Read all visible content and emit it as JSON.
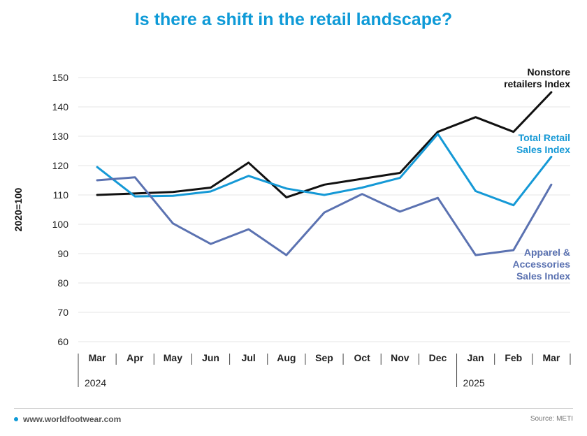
{
  "title": "Is there a shift in the retail landscape?",
  "footer": {
    "website": "www.worldfootwear.com",
    "source": "Source: METI"
  },
  "colors": {
    "title": "#0e9ad7",
    "nonstore": "#111111",
    "total_retail": "#1599d6",
    "apparel": "#5b72b1",
    "grid": "#e4e4e4"
  },
  "chart_data": {
    "type": "line",
    "ylabel": "2020=100",
    "xlabel": "",
    "ylim": [
      60,
      150
    ],
    "yticks": [
      60,
      70,
      80,
      90,
      100,
      110,
      120,
      130,
      140,
      150
    ],
    "grid": true,
    "categories": [
      "Mar",
      "Apr",
      "May",
      "Jun",
      "Jul",
      "Aug",
      "Sep",
      "Oct",
      "Nov",
      "Dec",
      "Jan",
      "Feb",
      "Mar"
    ],
    "year_groups": [
      {
        "label": "2024",
        "start_index": 0
      },
      {
        "label": "2025",
        "start_index": 10
      }
    ],
    "series": [
      {
        "name": "Nonstore retailers Index",
        "label_lines": [
          "Nonstore",
          "retailers Index"
        ],
        "color": "#111111",
        "values": [
          110,
          110.5,
          111,
          112.5,
          121,
          109.2,
          113.5,
          115.5,
          117.5,
          131.5,
          136.5,
          131.5,
          145
        ]
      },
      {
        "name": "Total Retail Sales Index",
        "label_lines": [
          "Total Retail",
          "Sales Index"
        ],
        "color": "#1599d6",
        "values": [
          119.5,
          109.5,
          109.7,
          111.2,
          116.5,
          112.2,
          110,
          112.5,
          115.8,
          130.8,
          111.3,
          106.5,
          123
        ]
      },
      {
        "name": "Apparel & Accessories Sales Index",
        "label_lines": [
          "Apparel &",
          "Accessories",
          "Sales Index"
        ],
        "color": "#5b72b1",
        "values": [
          115,
          116,
          100.3,
          93.3,
          98.3,
          89.5,
          104,
          110.3,
          104.3,
          109,
          89.5,
          91.2,
          113.5
        ]
      }
    ]
  }
}
